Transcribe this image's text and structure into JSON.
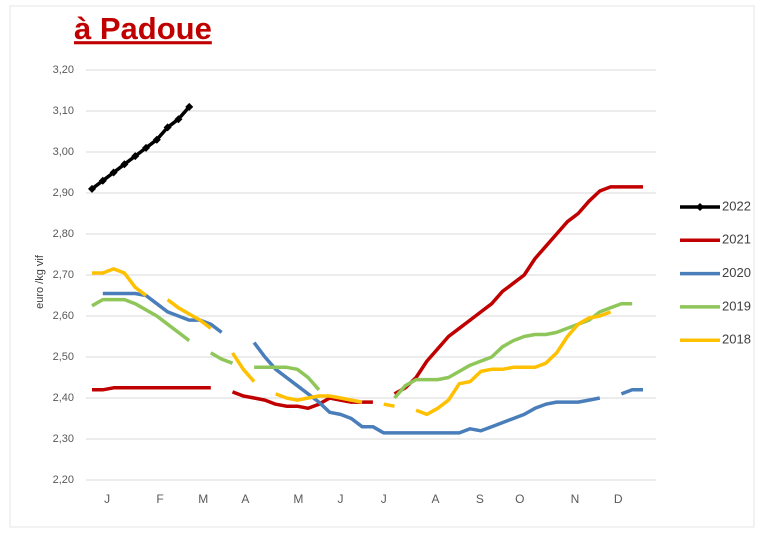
{
  "chart_data": {
    "type": "line",
    "title": "à Padoue",
    "y_label": "euro /kg vif",
    "x": [
      1,
      2,
      3,
      4,
      5,
      6,
      7,
      8,
      9,
      10,
      11,
      12,
      13,
      14,
      15,
      16,
      17,
      18,
      19,
      20,
      21,
      22,
      23,
      24,
      25,
      26,
      27,
      28,
      29,
      30,
      31,
      32,
      33,
      34,
      35,
      36,
      37,
      38,
      39,
      40,
      41,
      42,
      43,
      44,
      45,
      46,
      47,
      48,
      49,
      50,
      51,
      52
    ],
    "xlim": [
      1,
      52
    ],
    "xticks": [
      {
        "value": 2.4,
        "label": "J"
      },
      {
        "value": 7.3,
        "label": "F"
      },
      {
        "value": 11.3,
        "label": "M"
      },
      {
        "value": 15.2,
        "label": "A"
      },
      {
        "value": 20.1,
        "label": "M"
      },
      {
        "value": 24,
        "label": "J"
      },
      {
        "value": 28,
        "label": "J"
      },
      {
        "value": 32.8,
        "label": "A"
      },
      {
        "value": 36.9,
        "label": "S"
      },
      {
        "value": 40.6,
        "label": "O"
      },
      {
        "value": 45.7,
        "label": "N"
      },
      {
        "value": 49.7,
        "label": "D"
      }
    ],
    "ylim": [
      2.2,
      3.2
    ],
    "yticks": [
      {
        "value": 2.2,
        "label": "2,20"
      },
      {
        "value": 2.3,
        "label": "2,30"
      },
      {
        "value": 2.4,
        "label": "2,40"
      },
      {
        "value": 2.5,
        "label": "2,50"
      },
      {
        "value": 2.6,
        "label": "2,60"
      },
      {
        "value": 2.7,
        "label": "2,70"
      },
      {
        "value": 2.8,
        "label": "2,80"
      },
      {
        "value": 2.9,
        "label": "2,90"
      },
      {
        "value": 3.0,
        "label": "3,00"
      },
      {
        "value": 3.1,
        "label": "3,10"
      },
      {
        "value": 3.2,
        "label": "3,20"
      }
    ],
    "grid": true,
    "legend": "right",
    "series": [
      {
        "name": "2022",
        "color": "#000000",
        "marker": "diamond",
        "values": [
          2.91,
          2.93,
          2.95,
          2.97,
          2.99,
          3.01,
          3.03,
          3.06,
          3.08,
          3.11,
          null,
          null,
          null,
          null,
          null,
          null,
          null,
          null,
          null,
          null,
          null,
          null,
          null,
          null,
          null,
          null,
          null,
          null,
          null,
          null,
          null,
          null,
          null,
          null,
          null,
          null,
          null,
          null,
          null,
          null,
          null,
          null,
          null,
          null,
          null,
          null,
          null,
          null,
          null,
          null,
          null,
          null
        ]
      },
      {
        "name": "2021",
        "color": "#c00000",
        "values": [
          2.42,
          2.42,
          2.425,
          2.425,
          2.425,
          2.425,
          2.425,
          2.425,
          2.425,
          2.425,
          2.425,
          2.425,
          null,
          2.415,
          2.405,
          2.4,
          2.395,
          2.385,
          2.38,
          2.38,
          2.375,
          2.385,
          2.4,
          2.395,
          2.39,
          2.39,
          2.39,
          null,
          2.41,
          2.425,
          2.45,
          2.49,
          2.52,
          2.55,
          2.57,
          2.59,
          2.61,
          2.63,
          2.66,
          2.68,
          2.7,
          2.74,
          2.77,
          2.8,
          2.83,
          2.85,
          2.88,
          2.905,
          2.915,
          2.915,
          2.915,
          2.915
        ]
      },
      {
        "name": "2020",
        "color": "#4a7ebb",
        "values": [
          null,
          2.655,
          2.655,
          2.655,
          2.655,
          2.65,
          2.63,
          2.61,
          2.6,
          2.59,
          2.59,
          2.58,
          2.56,
          null,
          null,
          2.535,
          2.5,
          2.47,
          2.45,
          2.43,
          2.41,
          2.39,
          2.365,
          2.36,
          2.35,
          2.33,
          2.33,
          2.315,
          2.315,
          2.315,
          2.315,
          2.315,
          2.315,
          2.315,
          2.315,
          2.325,
          2.32,
          2.33,
          2.34,
          2.35,
          2.36,
          2.375,
          2.385,
          2.39,
          2.39,
          2.39,
          2.395,
          2.4,
          null,
          2.41,
          2.42,
          2.42
        ]
      },
      {
        "name": "2019",
        "color": "#8fc65a",
        "values": [
          2.625,
          2.64,
          2.64,
          2.64,
          2.63,
          2.615,
          2.6,
          2.58,
          2.56,
          2.54,
          null,
          2.51,
          2.495,
          2.485,
          null,
          2.475,
          2.475,
          2.475,
          2.475,
          2.47,
          2.45,
          2.42,
          null,
          null,
          null,
          null,
          null,
          null,
          2.4,
          2.43,
          2.445,
          2.445,
          2.445,
          2.45,
          2.465,
          2.48,
          2.49,
          2.5,
          2.525,
          2.54,
          2.55,
          2.555,
          2.555,
          2.56,
          2.57,
          2.58,
          2.59,
          2.61,
          2.62,
          2.63,
          2.63,
          null
        ]
      },
      {
        "name": "2018",
        "color": "#ffc000",
        "values": [
          2.705,
          2.705,
          2.715,
          2.705,
          2.67,
          2.65,
          null,
          2.64,
          2.62,
          2.605,
          2.59,
          2.57,
          null,
          2.51,
          2.47,
          2.44,
          null,
          2.41,
          2.4,
          2.395,
          2.4,
          2.405,
          2.405,
          2.4,
          2.395,
          2.39,
          null,
          2.385,
          2.38,
          null,
          2.37,
          2.36,
          2.375,
          2.395,
          2.435,
          2.44,
          2.465,
          2.47,
          2.47,
          2.475,
          2.475,
          2.475,
          2.485,
          2.51,
          2.55,
          2.58,
          2.595,
          2.6,
          2.61,
          null,
          null,
          null
        ]
      }
    ]
  }
}
